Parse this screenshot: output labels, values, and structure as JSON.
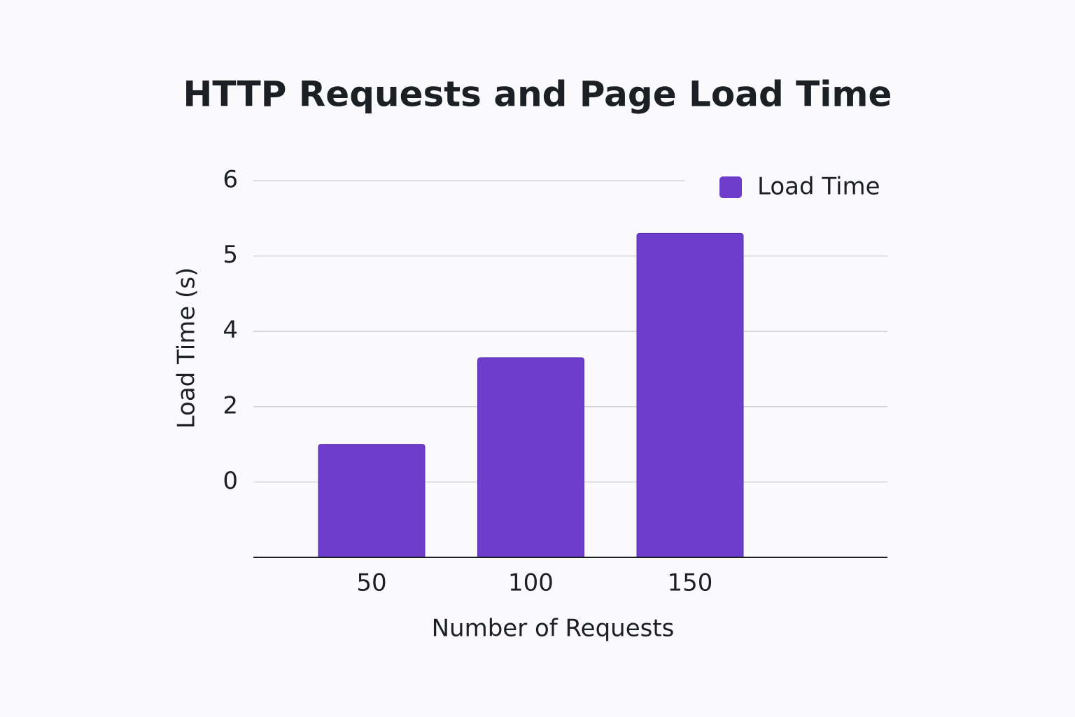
{
  "chart_data": {
    "type": "bar",
    "title": "HTTP Requests and Page Load Time",
    "x_label": "Number of Requests",
    "y_label": "Load Time (s)",
    "categories": [
      "50",
      "100",
      "150"
    ],
    "series": [
      {
        "name": "Load Time",
        "color": "#6f3dcb",
        "values": [
          1,
          3.3,
          5.3
        ]
      }
    ],
    "ylim": [
      -2,
      6
    ],
    "yticks": [
      0,
      2,
      4,
      5,
      6
    ],
    "grid": true,
    "legend": "top-right"
  }
}
